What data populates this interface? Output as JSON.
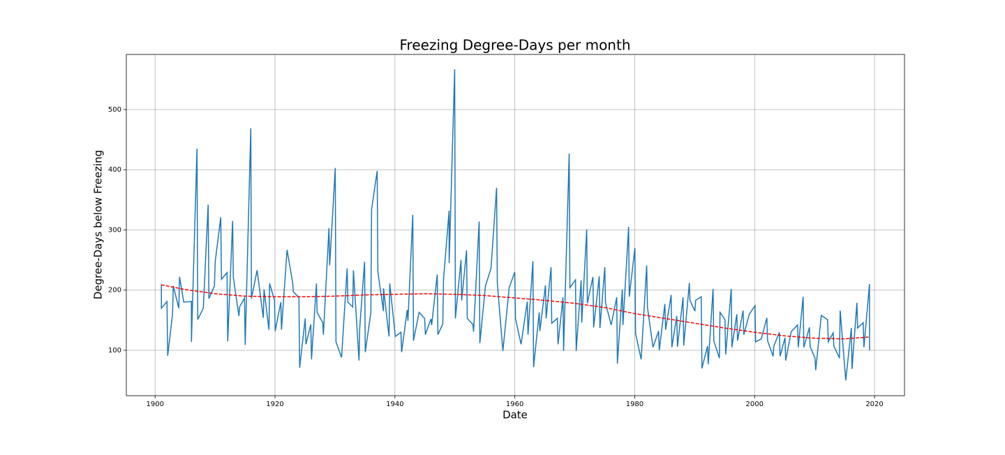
{
  "chart_data": {
    "type": "line",
    "title": "Freezing Degree-Days per month",
    "x_label": "Date",
    "y_label": "Degree-Days below Freezing",
    "xlim": [
      1895.2,
      2025.0
    ],
    "ylim": [
      24.6,
      591.6
    ],
    "xticks": [
      1900,
      1920,
      1940,
      1960,
      1980,
      2000,
      2020
    ],
    "yticks": [
      100,
      200,
      300,
      400,
      500
    ],
    "grid": true,
    "series": [
      {
        "color": "#1f77b4",
        "dash": false,
        "x": [
          1901.05,
          1901.05,
          1901.98,
          1902.1,
          1902.91,
          1903.03,
          1903.96,
          1904.08,
          1904.78,
          1906.06,
          1906.06,
          1906.99,
          1907.11,
          1908.04,
          1908.85,
          1908.97,
          1909.9,
          1910.02,
          1910.95,
          1911.07,
          1912.0,
          1912.11,
          1912.93,
          1913.05,
          1913.98,
          1914.09,
          1914.91,
          1915.03,
          1915.96,
          1916.07,
          1917.01,
          1918.05,
          1918.17,
          1918.99,
          1919.1,
          1919.92,
          1920.03,
          1920.97,
          1921.08,
          1922.01,
          1922.95,
          1923.06,
          1923.99,
          1924.11,
          1925.04,
          1925.16,
          1925.97,
          1926.09,
          1926.91,
          1927.02,
          1927.96,
          1928.07,
          1929.0,
          1929.12,
          1930.05,
          1930.17,
          1931.1,
          1932.03,
          1932.15,
          1932.96,
          1933.08,
          1934.01,
          1934.13,
          1934.94,
          1935.06,
          1935.99,
          1936.11,
          1937.04,
          1937.16,
          1938.09,
          1938.1,
          1939.02,
          1939.14,
          1940.07,
          1941.0,
          1941.12,
          1942.05,
          1942.17,
          1942.98,
          1943.1,
          1944.03,
          1944.96,
          1945.08,
          1946.01,
          1946.13,
          1947.06,
          1947.17,
          1947.99,
          1948.11,
          1949.04,
          1949.05,
          1949.97,
          1950.09,
          1951.02,
          1951.14,
          1951.95,
          1952.07,
          1953.0,
          1953.12,
          1954.05,
          1954.17,
          1955.1,
          1956.03,
          1956.96,
          1957.08,
          1958.01,
          1959.06,
          1959.99,
          1960.11,
          1961.04,
          1962.08,
          1962.2,
          1963.02,
          1963.13,
          1964.07,
          1964.18,
          1965.11,
          1965.23,
          1966.04,
          1966.16,
          1967.09,
          1967.21,
          1968.03,
          1968.14,
          1969.07,
          1969.19,
          1970.12,
          1970.24,
          1971.06,
          1971.17,
          1971.99,
          1972.1,
          1973.03,
          1973.15,
          1974.08,
          1974.2,
          1975.01,
          1975.13,
          1976.07,
          1977.0,
          1977.11,
          1977.93,
          1978.04,
          1978.98,
          1979.09,
          1980.03,
          1980.14,
          1981.07,
          1982.0,
          1982.12,
          1983.05,
          1983.98,
          1984.1,
          1985.03,
          1985.15,
          1986.08,
          1986.2,
          1987.01,
          1987.13,
          1988.06,
          1988.18,
          1989.11,
          1989.22,
          1990.04,
          1990.16,
          1991.09,
          1991.21,
          1992.14,
          1992.26,
          1993.07,
          1993.19,
          1994.12,
          1994.23,
          1995.05,
          1995.17,
          1996.1,
          1996.21,
          1997.03,
          1997.15,
          1998.08,
          1998.19,
          1999.12,
          2000.06,
          2000.17,
          2001.11,
          2002.04,
          2002.16,
          2003.09,
          2003.2,
          2004.13,
          2004.25,
          2005.07,
          2005.18,
          2006.11,
          2007.16,
          2007.28,
          2008.09,
          2008.21,
          2009.14,
          2009.26,
          2010.07,
          2010.19,
          2011.12,
          2012.17,
          2012.29,
          2013.1,
          2013.22,
          2014.15,
          2014.27,
          2015.2,
          2016.13,
          2016.25,
          2017.06,
          2017.18,
          2018.11,
          2018.23,
          2019.16,
          2019.17
        ],
        "values": [
          209,
          170,
          181,
          91,
          160,
          207,
          170,
          222,
          180,
          181,
          114,
          435,
          151,
          170,
          342,
          186,
          207,
          247,
          321,
          218,
          229,
          115,
          315,
          221,
          157,
          172,
          187,
          109,
          469,
          186,
          233,
          154,
          201,
          134,
          211,
          183,
          132,
          180,
          134,
          267,
          212,
          197,
          188,
          71,
          153,
          110,
          143,
          85,
          211,
          163,
          146,
          126,
          303,
          241,
          403,
          114,
          88,
          236,
          180,
          172,
          233,
          83,
          137,
          247,
          97,
          163,
          334,
          398,
          230,
          165,
          203,
          123,
          211,
          123,
          130,
          97,
          167,
          149,
          325,
          116,
          163,
          153,
          126,
          152,
          142,
          226,
          126,
          144,
          218,
          332,
          245,
          567,
          153,
          250,
          183,
          266,
          153,
          143,
          131,
          314,
          112,
          207,
          236,
          370,
          212,
          99,
          204,
          230,
          153,
          110,
          181,
          126,
          248,
          72,
          163,
          132,
          208,
          153,
          238,
          145,
          153,
          110,
          188,
          99,
          427,
          204,
          217,
          99,
          216,
          146,
          301,
          178,
          222,
          138,
          223,
          137,
          238,
          179,
          142,
          188,
          78,
          201,
          142,
          305,
          189,
          270,
          128,
          85,
          241,
          172,
          105,
          132,
          100,
          177,
          134,
          192,
          105,
          157,
          106,
          188,
          108,
          212,
          183,
          165,
          183,
          189,
          70,
          107,
          77,
          202,
          116,
          87,
          163,
          151,
          93,
          202,
          105,
          160,
          116,
          166,
          126,
          160,
          174,
          114,
          119,
          154,
          116,
          90,
          107,
          130,
          90,
          121,
          83,
          131,
          142,
          105,
          189,
          105,
          138,
          106,
          87,
          67,
          158,
          151,
          114,
          129,
          107,
          87,
          166,
          50,
          137,
          69,
          179,
          137,
          146,
          105,
          210,
          100
        ]
      },
      {
        "color": "#ff0000",
        "dash": true,
        "x": [
          1901,
          1905,
          1910,
          1915,
          1920,
          1925,
          1930,
          1935,
          1940,
          1945,
          1950,
          1955,
          1960,
          1965,
          1970,
          1975,
          1980,
          1985,
          1990,
          1995,
          2000,
          2005,
          2010,
          2015,
          2019
        ],
        "values": [
          209,
          201,
          194,
          190,
          189,
          189,
          190,
          192,
          193,
          194,
          193,
          191,
          187,
          183,
          178,
          171,
          161,
          153,
          145,
          137,
          130,
          124,
          120,
          119,
          122
        ]
      }
    ]
  }
}
